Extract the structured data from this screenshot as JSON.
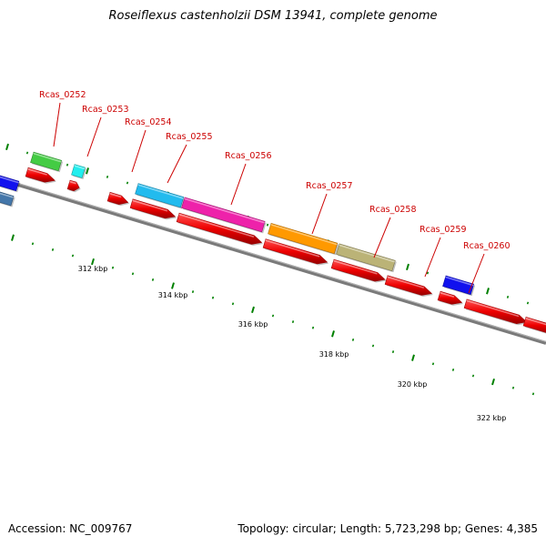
{
  "title": "Roseiflexus castenholzii DSM 13941, complete genome",
  "footer": {
    "accession": "Accession: NC_009767",
    "summary": "Topology: circular; Length: 5,723,298 bp; Genes: 4,385"
  },
  "colors": {
    "backbone": "#7a7a7a",
    "cds": "#ee0000",
    "tick": "#008000",
    "label": "#cc0000",
    "leader": "#cc0000"
  },
  "scale_labels": [
    "312 kbp",
    "314 kbp",
    "316 kbp",
    "318 kbp",
    "320 kbp",
    "322 kbp"
  ],
  "genes": [
    {
      "id": "Rcas_0252",
      "color": "#44cc44"
    },
    {
      "id": "Rcas_0253",
      "color": "#22eeee"
    },
    {
      "id": "Rcas_0254",
      "color": "#22bbee"
    },
    {
      "id": "Rcas_0255",
      "color": "#22bbee"
    },
    {
      "id": "Rcas_0256",
      "color": "#ee22aa"
    },
    {
      "id": "Rcas_0257",
      "color": "#ff9900"
    },
    {
      "id": "Rcas_0258",
      "color": "#bbb377"
    },
    {
      "id": "Rcas_0259",
      "color": "#1111ee"
    },
    {
      "id": "Rcas_0260",
      "color": "#1111ee"
    }
  ]
}
